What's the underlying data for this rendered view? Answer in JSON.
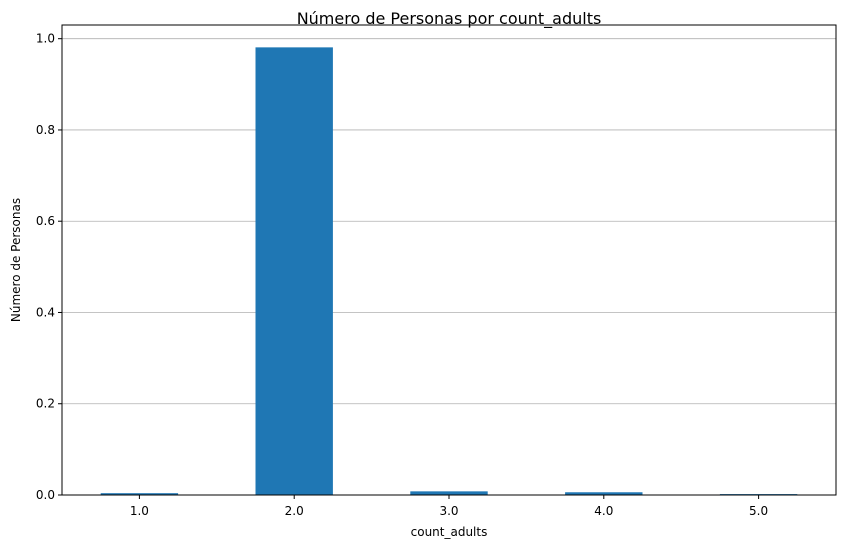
{
  "chart_data": {
    "type": "bar",
    "title": "Número de Personas por count_adults",
    "xlabel": "count_adults",
    "ylabel": "Número de Personas",
    "categories": [
      "1.0",
      "2.0",
      "3.0",
      "4.0",
      "5.0"
    ],
    "values": [
      0.004,
      0.981,
      0.008,
      0.006,
      0.002
    ],
    "ylim": [
      0,
      1.03
    ],
    "yticks": [
      "0.0",
      "0.2",
      "0.4",
      "0.6",
      "0.8",
      "1.0"
    ],
    "grid": "y",
    "bar_color": "#1f77b4",
    "legend": "none"
  }
}
